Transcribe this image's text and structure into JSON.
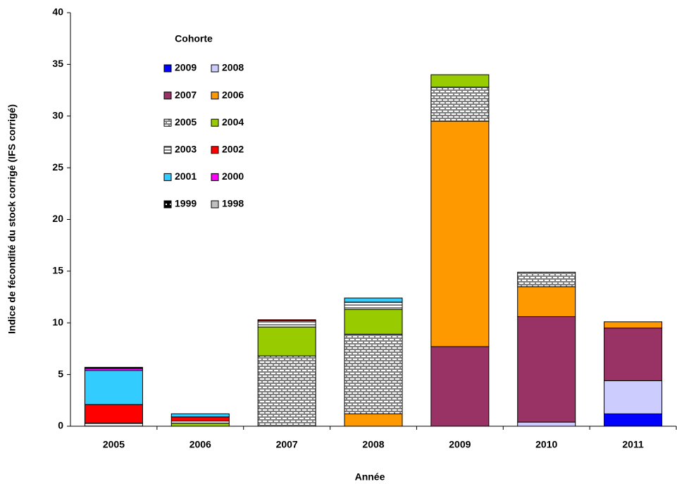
{
  "chart_data": {
    "type": "stacked_bar",
    "x_label": "Année",
    "y_label": "Indice de fécondité du stock corrigé (IFS corrigé)",
    "legend_title": "Cohorte",
    "categories": [
      "2005",
      "2006",
      "2007",
      "2008",
      "2009",
      "2010",
      "2011"
    ],
    "series": [
      {
        "name": "2009",
        "color": "#0000ff",
        "values": [
          null,
          null,
          null,
          null,
          null,
          null,
          1.2
        ]
      },
      {
        "name": "2008",
        "color": "#ccccff",
        "values": [
          null,
          null,
          null,
          null,
          null,
          0.4,
          3.2
        ]
      },
      {
        "name": "2007",
        "color": "#993366",
        "values": [
          null,
          null,
          null,
          null,
          7.7,
          10.2,
          5.1
        ]
      },
      {
        "name": "2006",
        "color": "#ff9900",
        "values": [
          null,
          null,
          null,
          1.2,
          21.8,
          2.9,
          0.6
        ]
      },
      {
        "name": "2005",
        "color": "#808080",
        "pattern": "brick",
        "values": [
          null,
          null,
          6.8,
          7.7,
          3.3,
          1.4,
          null
        ]
      },
      {
        "name": "2004",
        "color": "#99cc00",
        "values": [
          null,
          0.3,
          2.8,
          2.4,
          1.2,
          null,
          null
        ]
      },
      {
        "name": "2003",
        "color": "#808080",
        "pattern": "stripes",
        "values": [
          0.3,
          0.2,
          0.6,
          0.7,
          null,
          null,
          null
        ]
      },
      {
        "name": "2002",
        "color": "#ff0000",
        "values": [
          1.8,
          0.4,
          0.1,
          null,
          null,
          null,
          null
        ]
      },
      {
        "name": "2001",
        "color": "#33ccff",
        "values": [
          3.3,
          0.3,
          null,
          0.4,
          null,
          null,
          null
        ]
      },
      {
        "name": "2000",
        "color": "#ff00ff",
        "values": [
          0.2,
          null,
          null,
          null,
          null,
          null,
          null
        ]
      },
      {
        "name": "1999",
        "color": "#000000",
        "pattern": "dots",
        "values": [
          0.1,
          null,
          null,
          null,
          null,
          null,
          null
        ]
      },
      {
        "name": "1998",
        "color": "#c0c0c0",
        "values": [
          null,
          null,
          null,
          null,
          null,
          null,
          null
        ]
      }
    ],
    "ylim": [
      0,
      40
    ],
    "yticks": [
      0,
      5,
      10,
      15,
      20,
      25,
      30,
      35,
      40
    ]
  }
}
